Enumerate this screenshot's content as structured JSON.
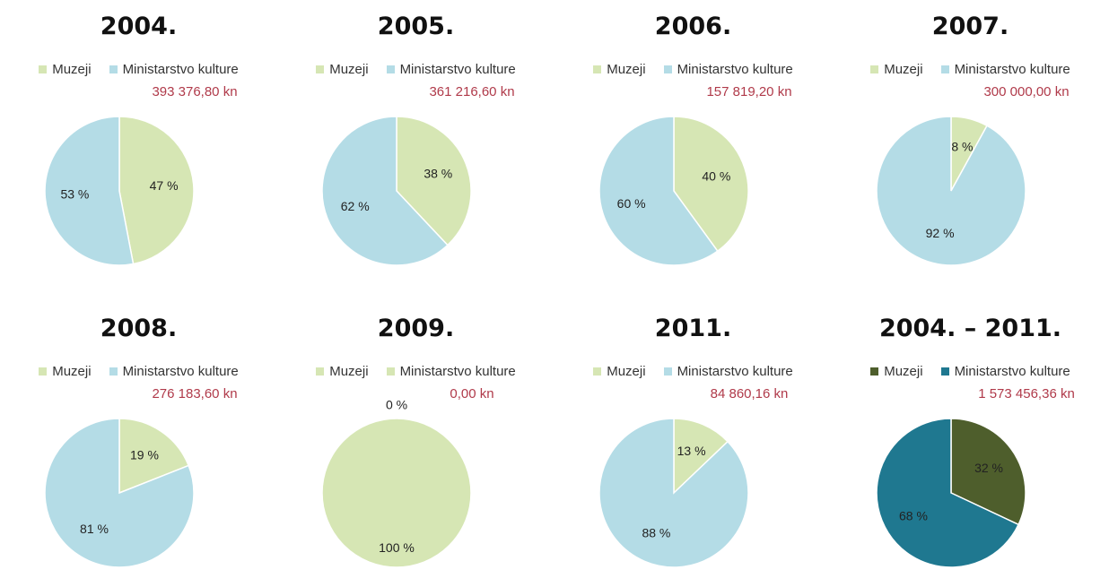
{
  "chart_data": [
    {
      "type": "pie",
      "title": "2004.",
      "amount": "393 376,80 kn",
      "legend": [
        {
          "label": "Muzeji",
          "color": "#d6e6b4"
        },
        {
          "label": "Ministarstvo kulture",
          "color": "#b4dce6"
        }
      ],
      "slices": [
        {
          "label": "Muzeji",
          "value": 47,
          "text": "47 %",
          "color": "#d6e6b4"
        },
        {
          "label": "Ministarstvo kulture",
          "value": 53,
          "text": "53 %",
          "color": "#b4dce6"
        }
      ]
    },
    {
      "type": "pie",
      "title": "2005.",
      "amount": "361 216,60 kn",
      "legend": [
        {
          "label": "Muzeji",
          "color": "#d6e6b4"
        },
        {
          "label": "Ministarstvo kulture",
          "color": "#b4dce6"
        }
      ],
      "slices": [
        {
          "label": "Muzeji",
          "value": 38,
          "text": "38 %",
          "color": "#d6e6b4"
        },
        {
          "label": "Ministarstvo kulture",
          "value": 62,
          "text": "62 %",
          "color": "#b4dce6"
        }
      ]
    },
    {
      "type": "pie",
      "title": "2006.",
      "amount": "157 819,20 kn",
      "legend": [
        {
          "label": "Muzeji",
          "color": "#d6e6b4"
        },
        {
          "label": "Ministarstvo kulture",
          "color": "#b4dce6"
        }
      ],
      "slices": [
        {
          "label": "Muzeji",
          "value": 40,
          "text": "40 %",
          "color": "#d6e6b4"
        },
        {
          "label": "Ministarstvo kulture",
          "value": 60,
          "text": "60 %",
          "color": "#b4dce6"
        }
      ]
    },
    {
      "type": "pie",
      "title": "2007.",
      "amount": "300 000,00 kn",
      "legend": [
        {
          "label": "Muzeji",
          "color": "#d6e6b4"
        },
        {
          "label": "Ministarstvo kulture",
          "color": "#b4dce6"
        }
      ],
      "slices": [
        {
          "label": "Muzeji",
          "value": 8,
          "text": "8 %",
          "color": "#d6e6b4"
        },
        {
          "label": "Ministarstvo kulture",
          "value": 92,
          "text": "92 %",
          "color": "#b4dce6"
        }
      ]
    },
    {
      "type": "pie",
      "title": "2008.",
      "amount": "276 183,60 kn",
      "legend": [
        {
          "label": "Muzeji",
          "color": "#d6e6b4"
        },
        {
          "label": "Ministarstvo kulture",
          "color": "#b4dce6"
        }
      ],
      "slices": [
        {
          "label": "Muzeji",
          "value": 19,
          "text": "19 %",
          "color": "#d6e6b4"
        },
        {
          "label": "Ministarstvo kulture",
          "value": 81,
          "text": "81 %",
          "color": "#b4dce6"
        }
      ]
    },
    {
      "type": "pie",
      "title": "2009.",
      "amount": "0,00 kn",
      "legend": [
        {
          "label": "Muzeji",
          "color": "#d6e6b4"
        },
        {
          "label": "Ministarstvo kulture",
          "color": "#d6e6b4"
        }
      ],
      "slices": [
        {
          "label": "Muzeji",
          "value": 100,
          "text": "100 %",
          "color": "#d6e6b4"
        },
        {
          "label": "Ministarstvo kulture",
          "value": 0,
          "text": "0 %",
          "color": "#d6e6b4"
        }
      ]
    },
    {
      "type": "pie",
      "title": "2011.",
      "amount": "84 860,16 kn",
      "legend": [
        {
          "label": "Muzeji",
          "color": "#d6e6b4"
        },
        {
          "label": "Ministarstvo kulture",
          "color": "#b4dce6"
        }
      ],
      "slices": [
        {
          "label": "Muzeji",
          "value": 13,
          "text": "13 %",
          "color": "#d6e6b4"
        },
        {
          "label": "Ministarstvo kulture",
          "value": 88,
          "text": "88 %",
          "color": "#b4dce6"
        }
      ]
    },
    {
      "type": "pie",
      "title": "2004. – 2011.",
      "amount": "1 573 456,36 kn",
      "legend": [
        {
          "label": "Muzeji",
          "color": "#4e5e2c"
        },
        {
          "label": "Ministarstvo kulture",
          "color": "#1f7890"
        }
      ],
      "slices": [
        {
          "label": "Muzeji",
          "value": 32,
          "text": "32 %",
          "color": "#4e5e2c"
        },
        {
          "label": "Ministarstvo kulture",
          "value": 68,
          "text": "68 %",
          "color": "#1f7890"
        }
      ]
    }
  ]
}
